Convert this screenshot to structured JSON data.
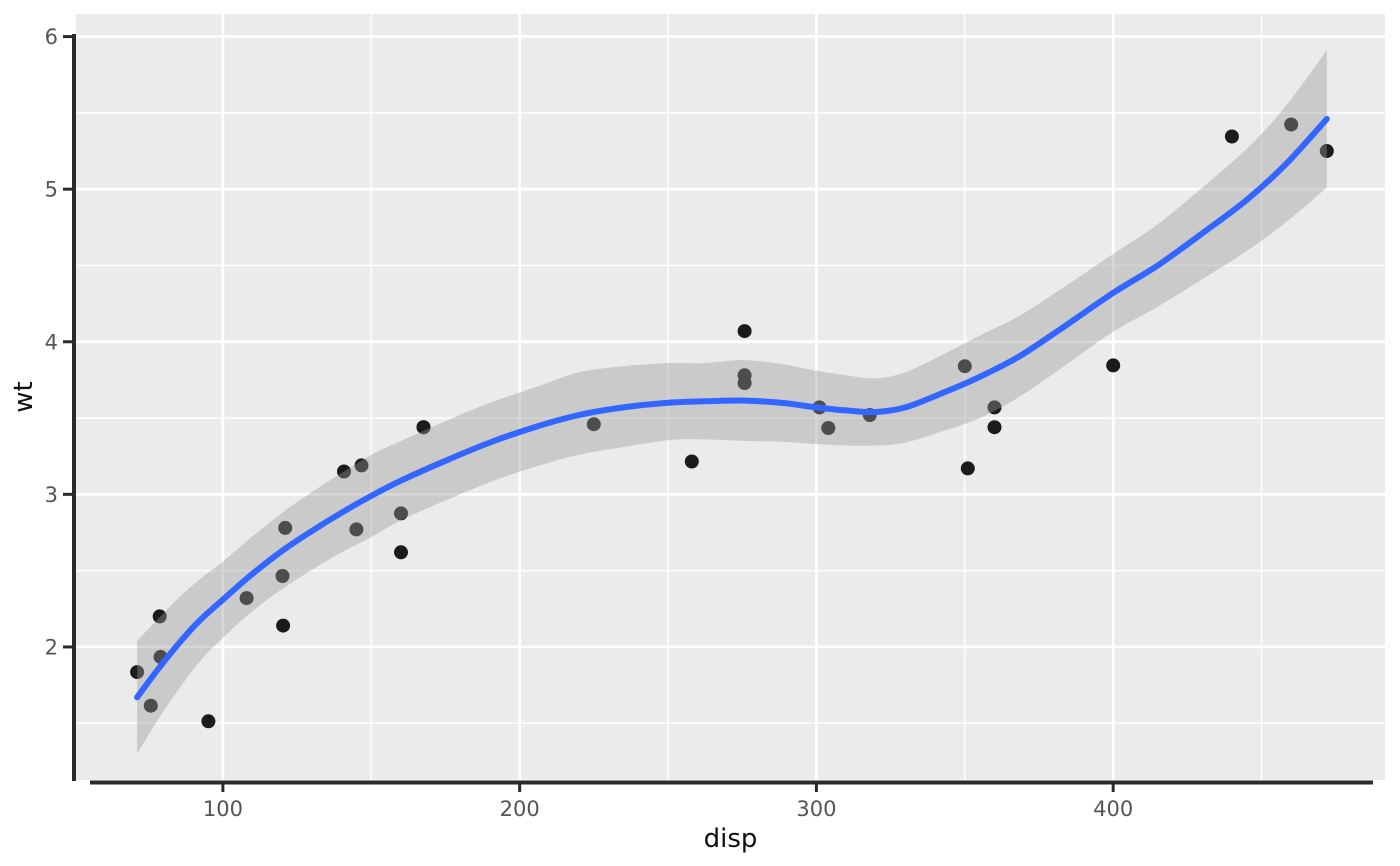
{
  "chart_data": {
    "type": "scatter",
    "title": "",
    "xlabel": "disp",
    "ylabel": "wt",
    "x_ticks": [
      100,
      200,
      300,
      400
    ],
    "y_ticks": [
      2,
      3,
      4,
      5,
      6
    ],
    "x_minor_ticks": [
      150,
      250,
      350,
      450
    ],
    "y_minor_ticks": [
      1.5,
      2.5,
      3.5,
      4.5,
      5.5
    ],
    "xlim": [
      50.5,
      491.6
    ],
    "ylim": [
      1.128,
      6.148
    ],
    "grid": "on",
    "legend": "none",
    "points": [
      [
        160,
        2.62
      ],
      [
        160,
        2.875
      ],
      [
        108,
        2.32
      ],
      [
        258,
        3.215
      ],
      [
        360,
        3.44
      ],
      [
        225,
        3.46
      ],
      [
        360,
        3.57
      ],
      [
        146.7,
        3.19
      ],
      [
        140.8,
        3.15
      ],
      [
        167.6,
        3.44
      ],
      [
        167.6,
        3.44
      ],
      [
        275.8,
        4.07
      ],
      [
        275.8,
        3.73
      ],
      [
        275.8,
        3.78
      ],
      [
        472,
        5.25
      ],
      [
        460,
        5.424
      ],
      [
        440,
        5.345
      ],
      [
        78.7,
        2.2
      ],
      [
        75.7,
        1.615
      ],
      [
        71.1,
        1.835
      ],
      [
        120.1,
        2.465
      ],
      [
        318,
        3.52
      ],
      [
        304,
        3.435
      ],
      [
        350,
        3.84
      ],
      [
        400,
        3.845
      ],
      [
        79,
        1.935
      ],
      [
        120.3,
        2.14
      ],
      [
        95.1,
        1.513
      ],
      [
        351,
        3.17
      ],
      [
        145,
        2.77
      ],
      [
        301,
        3.57
      ],
      [
        121,
        2.78
      ]
    ],
    "smooth_line": {
      "x": [
        71.1,
        78,
        85,
        92,
        100,
        110,
        120,
        130,
        140,
        150,
        160,
        175,
        190,
        205,
        220,
        235,
        250,
        262,
        275,
        288,
        300,
        310,
        320,
        330,
        342,
        355,
        368,
        382,
        400,
        415,
        430,
        445,
        458,
        472
      ],
      "y": [
        1.67,
        1.85,
        2.02,
        2.17,
        2.31,
        2.48,
        2.63,
        2.76,
        2.88,
        2.99,
        3.09,
        3.22,
        3.34,
        3.44,
        3.52,
        3.57,
        3.6,
        3.61,
        3.615,
        3.6,
        3.57,
        3.55,
        3.54,
        3.57,
        3.66,
        3.77,
        3.9,
        4.08,
        4.32,
        4.5,
        4.71,
        4.93,
        5.16,
        5.46
      ]
    },
    "ribbon": {
      "x": [
        71.1,
        78,
        85,
        92,
        100,
        110,
        120,
        130,
        140,
        150,
        160,
        175,
        190,
        205,
        220,
        235,
        250,
        262,
        275,
        288,
        300,
        310,
        320,
        330,
        342,
        355,
        368,
        382,
        400,
        415,
        430,
        445,
        458,
        472
      ],
      "lower": [
        1.3,
        1.52,
        1.72,
        1.9,
        2.06,
        2.235,
        2.38,
        2.505,
        2.62,
        2.72,
        2.83,
        2.96,
        3.08,
        3.18,
        3.26,
        3.31,
        3.355,
        3.36,
        3.35,
        3.345,
        3.33,
        3.32,
        3.32,
        3.34,
        3.41,
        3.5,
        3.635,
        3.82,
        4.065,
        4.23,
        4.41,
        4.595,
        4.78,
        5.01
      ],
      "upper": [
        2.04,
        2.18,
        2.32,
        2.44,
        2.56,
        2.725,
        2.88,
        3.015,
        3.14,
        3.26,
        3.35,
        3.48,
        3.6,
        3.7,
        3.8,
        3.84,
        3.86,
        3.86,
        3.88,
        3.855,
        3.81,
        3.78,
        3.76,
        3.8,
        3.91,
        4.04,
        4.165,
        4.34,
        4.575,
        4.77,
        5.01,
        5.265,
        5.54,
        5.91
      ]
    },
    "colors": {
      "background": "#ffffff",
      "panel": "#ebebeb",
      "grid": "#ffffff",
      "axis": "#2a2a2a",
      "tick_label": "#555555",
      "title": "#111111",
      "point": "#1b1b1b",
      "line": "#3366ff",
      "ribbon": "#999999"
    },
    "ribbon_alpha": 0.4
  }
}
